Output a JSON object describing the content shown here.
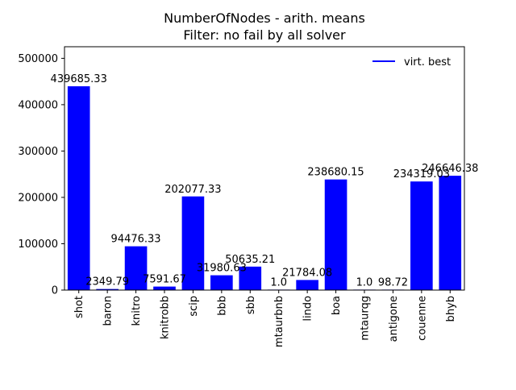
{
  "chart_data": {
    "type": "bar",
    "title": "NumberOfNodes - arith. means",
    "subtitle": "Filter: no fail by all solver",
    "xlabel": "",
    "ylabel": "",
    "categories": [
      "shot",
      "baron",
      "knitro",
      "knitrobb",
      "scip",
      "bbb",
      "sbb",
      "mtaurbnb",
      "lindo",
      "boa",
      "mtaurqg",
      "antigone",
      "couenne",
      "bhyb"
    ],
    "values": [
      439685.33,
      2349.79,
      94476.33,
      7591.67,
      202077.33,
      31980.63,
      50635.21,
      1.0,
      21784.08,
      238680.15,
      1.0,
      98.72,
      234319.03,
      246646.38
    ],
    "value_labels": [
      "439685.33",
      "2349.79",
      "94476.33",
      "7591.67",
      "202077.33",
      "31980.63",
      "50635.21",
      "1.0",
      "21784.08",
      "238680.15",
      "1.0",
      "98.72",
      "234319.03",
      "246646.38"
    ],
    "ylim": [
      0,
      525000
    ],
    "yticks": [
      0,
      100000,
      200000,
      300000,
      400000,
      500000
    ],
    "ytick_labels": [
      "0",
      "100000",
      "200000",
      "300000",
      "400000",
      "500000"
    ],
    "bar_color": "#0000ff",
    "grid": false,
    "legend": {
      "placement": "top-right",
      "entries": [
        {
          "label": "virt. best",
          "color": "#0000ff"
        }
      ]
    }
  }
}
